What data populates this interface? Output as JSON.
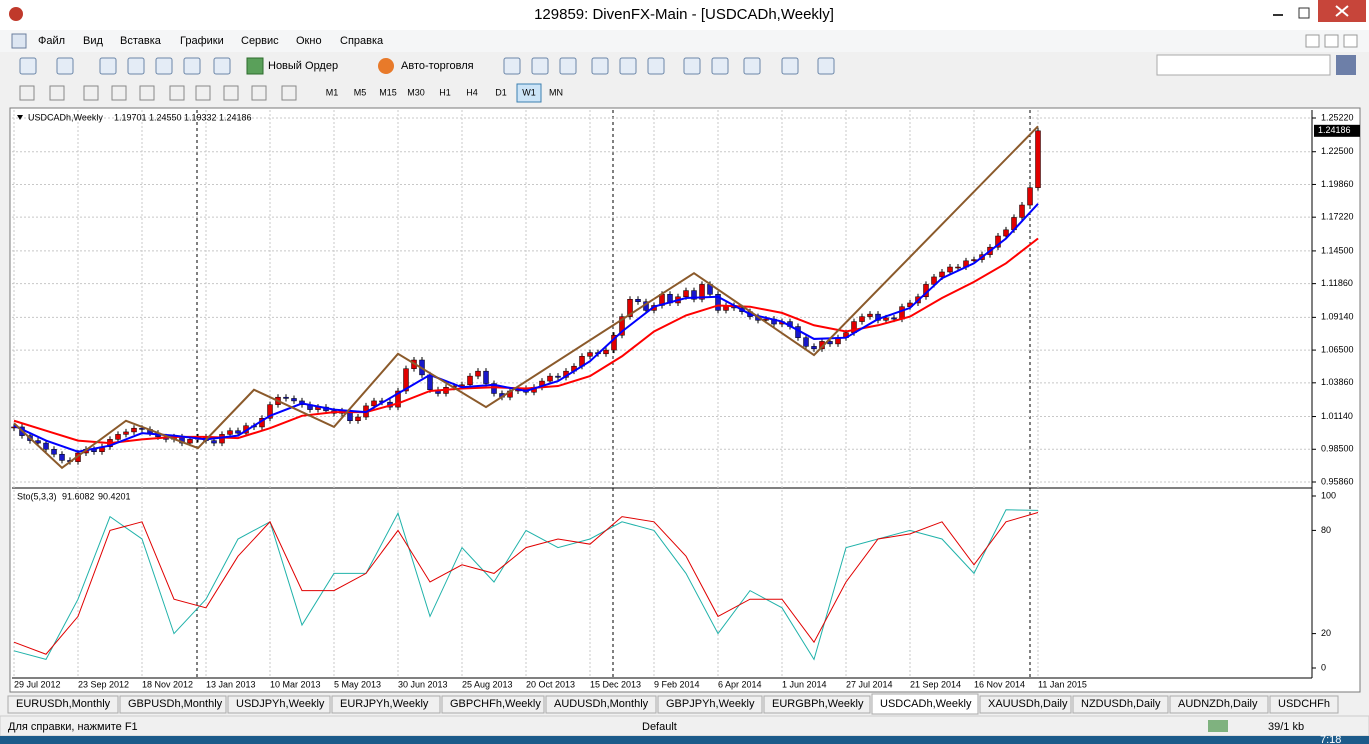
{
  "window": {
    "title": "129859: DivenFX-Main - [USDCADh,Weekly]"
  },
  "menu": [
    "Файл",
    "Вид",
    "Вставка",
    "Графики",
    "Сервис",
    "Окно",
    "Справка"
  ],
  "toolbar": {
    "new_order": "Новый Ордер",
    "auto_trading": "Авто-торговля",
    "timeframes": [
      "M1",
      "M5",
      "M15",
      "M30",
      "H1",
      "H4",
      "D1",
      "W1",
      "MN"
    ]
  },
  "chart_data": {
    "type": "candlestick",
    "symbol": "USDCADh,Weekly",
    "ohlc_text": [
      "1.19701",
      "1.24550",
      "1.19332",
      "1.24186"
    ],
    "current_price": {
      "value": 1.24186,
      "label": "1.24186"
    },
    "dates": [
      "29 Jul 2012",
      "23 Sep 2012",
      "18 Nov 2012",
      "13 Jan 2013",
      "10 Mar 2013",
      "5 May 2013",
      "30 Jun 2013",
      "25 Aug 2013",
      "20 Oct 2013",
      "15 Dec 2013",
      "9 Feb 2014",
      "6 Apr 2014",
      "1 Jun 2014",
      "27 Jul 2014",
      "21 Sep 2014",
      "16 Nov 2014",
      "11 Jan 2015"
    ],
    "close": [
      1.003,
      0.996,
      0.992,
      0.99,
      0.985,
      0.981,
      0.976,
      0.975,
      0.982,
      0.985,
      0.983,
      0.987,
      0.993,
      0.997,
      0.999,
      1.002,
      1.001,
      0.998,
      0.995,
      0.993,
      0.995,
      0.99,
      0.993,
      0.995,
      0.992,
      0.99,
      0.997,
      1.0,
      0.998,
      1.004,
      1.003,
      1.01,
      1.021,
      1.027,
      1.026,
      1.024,
      1.021,
      1.017,
      1.019,
      1.016,
      1.014,
      1.016,
      1.008,
      1.011,
      1.02,
      1.024,
      1.023,
      1.019,
      1.032,
      1.05,
      1.057,
      1.045,
      1.033,
      1.03,
      1.035,
      1.036,
      1.037,
      1.044,
      1.048,
      1.038,
      1.03,
      1.027,
      1.032,
      1.034,
      1.031,
      1.035,
      1.04,
      1.044,
      1.043,
      1.048,
      1.052,
      1.06,
      1.063,
      1.062,
      1.065,
      1.077,
      1.092,
      1.106,
      1.104,
      1.097,
      1.101,
      1.11,
      1.103,
      1.108,
      1.113,
      1.106,
      1.118,
      1.11,
      1.097,
      1.101,
      1.099,
      1.096,
      1.092,
      1.089,
      1.09,
      1.086,
      1.088,
      1.084,
      1.075,
      1.068,
      1.066,
      1.072,
      1.07,
      1.075,
      1.079,
      1.088,
      1.092,
      1.094,
      1.089,
      1.091,
      1.09,
      1.1,
      1.103,
      1.108,
      1.118,
      1.124,
      1.128,
      1.132,
      1.132,
      1.137,
      1.138,
      1.142,
      1.148,
      1.157,
      1.162,
      1.172,
      1.182,
      1.196,
      1.24186
    ],
    "up_color": "#e00000",
    "down_color": "#1818c8",
    "ylim": [
      0.9586,
      1.2522
    ],
    "yticks": [
      {
        "value": 1.2522,
        "label": "1.25220"
      },
      {
        "value": 1.225,
        "label": "1.22500"
      },
      {
        "value": 1.1986,
        "label": "1.19860"
      },
      {
        "value": 1.1722,
        "label": "1.17220"
      },
      {
        "value": 1.145,
        "label": "1.14500"
      },
      {
        "value": 1.1186,
        "label": "1.11860"
      },
      {
        "value": 1.0914,
        "label": "1.09140"
      },
      {
        "value": 1.065,
        "label": "1.06500"
      },
      {
        "value": 1.0386,
        "label": "1.03860"
      },
      {
        "value": 1.0114,
        "label": "1.01140"
      },
      {
        "value": 0.985,
        "label": "0.98500"
      },
      {
        "value": 0.9586,
        "label": "0.95860"
      }
    ],
    "ma_fast": {
      "color": "#0000ff",
      "values": [
        1.004,
        0.992,
        0.983,
        0.988,
        0.998,
        0.996,
        0.993,
        0.996,
        1.012,
        1.022,
        1.017,
        1.015,
        1.03,
        1.045,
        1.035,
        1.037,
        1.032,
        1.04,
        1.056,
        1.08,
        1.1,
        1.107,
        1.108,
        1.094,
        1.088,
        1.074,
        1.075,
        1.09,
        1.099,
        1.123,
        1.135,
        1.155,
        1.183
      ]
    },
    "ma_slow": {
      "color": "#ff0000",
      "values": [
        1.008,
        1.0,
        0.992,
        0.99,
        0.993,
        0.995,
        0.995,
        0.994,
        1.002,
        1.012,
        1.015,
        1.015,
        1.022,
        1.032,
        1.034,
        1.035,
        1.034,
        1.036,
        1.044,
        1.06,
        1.08,
        1.093,
        1.101,
        1.1,
        1.095,
        1.085,
        1.08,
        1.085,
        1.092,
        1.107,
        1.12,
        1.135,
        1.155
      ]
    },
    "zigzag": {
      "color": "#8b5a2b",
      "x": [
        0,
        6,
        14,
        23,
        30,
        40,
        48,
        59,
        85,
        100,
        128
      ],
      "values": [
        1.006,
        0.97,
        1.008,
        0.986,
        1.033,
        1.003,
        1.062,
        1.019,
        1.127,
        1.061,
        1.2455
      ]
    }
  },
  "indicator_data": {
    "type": "line",
    "title": "Sto(5,3,3)",
    "main_text": "91.6082",
    "signal_text": "90.4201",
    "ylim": [
      0,
      100
    ],
    "yticks": [
      100,
      80,
      20,
      0
    ],
    "main": {
      "color": "#20b2aa",
      "values": [
        10,
        5,
        40,
        88,
        75,
        20,
        40,
        75,
        85,
        25,
        55,
        55,
        90,
        30,
        70,
        50,
        80,
        70,
        75,
        85,
        80,
        55,
        20,
        45,
        35,
        5,
        70,
        75,
        80,
        75,
        55,
        92,
        91.6082
      ]
    },
    "signal": {
      "color": "#e00000",
      "values": [
        15,
        8,
        30,
        80,
        85,
        40,
        35,
        65,
        85,
        45,
        45,
        55,
        80,
        50,
        60,
        55,
        70,
        75,
        72,
        88,
        85,
        65,
        30,
        40,
        40,
        15,
        50,
        75,
        78,
        85,
        60,
        85,
        90.4201
      ]
    }
  },
  "tabs": [
    "EURUSDh,Monthly",
    "GBPUSDh,Monthly",
    "USDJPYh,Weekly",
    "EURJPYh,Weekly",
    "GBPCHFh,Weekly",
    "AUDUSDh,Monthly",
    "GBPJPYh,Weekly",
    "EURGBPh,Weekly",
    "USDCADh,Weekly",
    "XAUUSDh,Daily",
    "NZDUSDh,Daily",
    "AUDNZDh,Daily",
    "USDCHFh"
  ],
  "status": {
    "help": "Для справки, нажмите F1",
    "profile": "Default",
    "traffic": "39/1 kb"
  },
  "taskbar": {
    "time": "7:18"
  }
}
